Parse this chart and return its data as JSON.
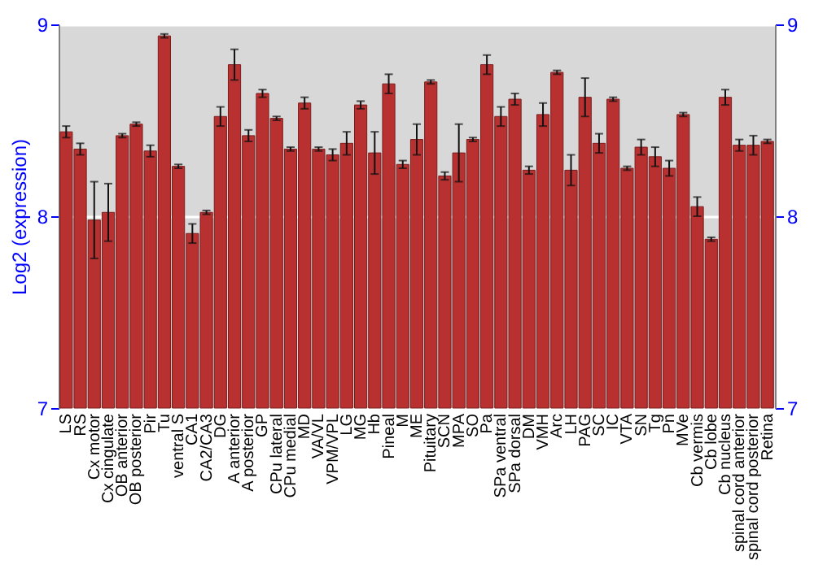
{
  "chart_data": {
    "type": "bar",
    "ylabel": "Log2 (expression)",
    "categories": [
      "LS",
      "RS",
      "Cx motor",
      "Cx cingulate",
      "OB anterior",
      "OB posterior",
      "Pir",
      "Tu",
      "ventral S",
      "CA1",
      "CA2/CA3",
      "DG",
      "A anterior",
      "A posterior",
      "GP",
      "CPu lateral",
      "CPu medial",
      "MD",
      "VA/VL",
      "VPM/VPL",
      "LG",
      "MG",
      "Hb",
      "Pineal",
      "M",
      "ME",
      "Pituitary",
      "SCN",
      "MPA",
      "SO",
      "Pa",
      "SPa ventral",
      "SPa dorsal",
      "DM",
      "VMH",
      "Arc",
      "LH",
      "PAG",
      "SC",
      "IC",
      "VTA",
      "SN",
      "Tg",
      "Pn",
      "MVe",
      "Cb vermis",
      "Cb lobe",
      "Cb nucleus",
      "spinal cord anterior",
      "spinal cord posterior",
      "Retina"
    ],
    "values": [
      8.44,
      8.35,
      7.98,
      8.02,
      8.42,
      8.48,
      8.34,
      8.94,
      8.26,
      7.91,
      8.02,
      8.52,
      8.79,
      8.42,
      8.64,
      8.51,
      8.35,
      8.59,
      8.35,
      8.32,
      8.38,
      8.58,
      8.33,
      8.69,
      8.27,
      8.4,
      8.7,
      8.21,
      8.33,
      8.4,
      8.79,
      8.52,
      8.61,
      8.24,
      8.53,
      8.75,
      8.24,
      8.62,
      8.38,
      8.61,
      8.25,
      8.36,
      8.31,
      8.25,
      8.53,
      8.05,
      7.88,
      8.62,
      8.37,
      8.37,
      8.39
    ],
    "errors": [
      0.03,
      0.03,
      0.2,
      0.15,
      0.01,
      0.01,
      0.03,
      0.01,
      0.01,
      0.05,
      0.01,
      0.05,
      0.08,
      0.03,
      0.02,
      0.01,
      0.01,
      0.03,
      0.01,
      0.03,
      0.06,
      0.02,
      0.11,
      0.05,
      0.02,
      0.08,
      0.01,
      0.02,
      0.15,
      0.01,
      0.05,
      0.05,
      0.03,
      0.02,
      0.06,
      0.01,
      0.08,
      0.1,
      0.05,
      0.01,
      0.01,
      0.04,
      0.05,
      0.04,
      0.01,
      0.05,
      0.01,
      0.04,
      0.03,
      0.05,
      0.01
    ],
    "color": "#b83030",
    "ylim": [
      7,
      9
    ],
    "yticks": [
      7,
      8,
      9
    ],
    "y2lim": [
      7,
      9
    ],
    "y2ticks": [
      7,
      8,
      9
    ],
    "grid": "y"
  }
}
